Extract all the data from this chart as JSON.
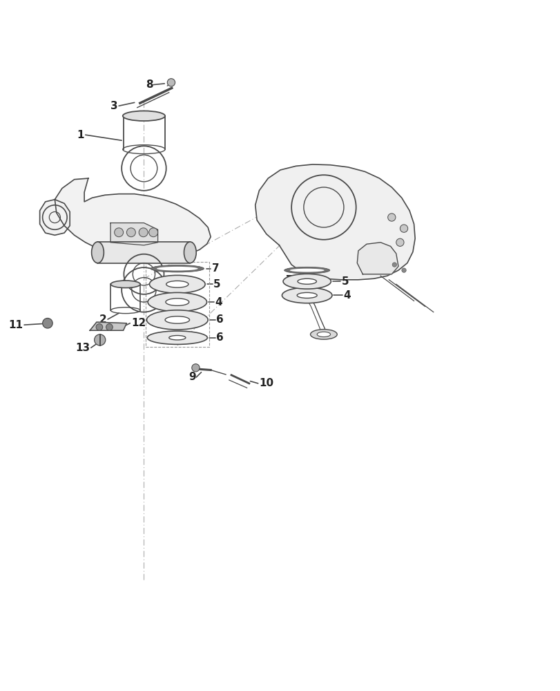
{
  "title": "",
  "background_color": "#ffffff",
  "line_color": "#4a4a4a",
  "dashed_color": "#888888",
  "label_color": "#222222",
  "label_fontsize": 11,
  "leader_line_color": "#444444"
}
